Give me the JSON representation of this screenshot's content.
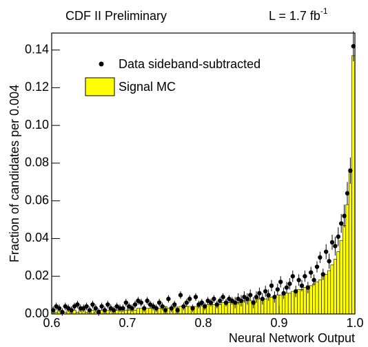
{
  "chart_data": {
    "type": "histogram",
    "header_left": "CDF II Preliminary",
    "header_right": "L = 1.7 fb",
    "header_right_exponent": "-1",
    "xlabel": "Neural Network Output",
    "ylabel": "Fraction of candidates per 0.004",
    "xlim": [
      0.6,
      1.0
    ],
    "ylim": [
      0,
      0.149
    ],
    "xticks": [
      0.6,
      0.7,
      0.8,
      0.9,
      {
        "value": 1,
        "label": "1.0"
      }
    ],
    "yticks": [
      {
        "value": 0,
        "label": "0.00"
      },
      0.02,
      0.04,
      0.06,
      0.08,
      {
        "value": 0.1,
        "label": "0.10"
      },
      0.12,
      0.14
    ],
    "bins": [
      0.6,
      0.604,
      0.608,
      0.612,
      0.616,
      0.62,
      0.624,
      0.628,
      0.632,
      0.636,
      0.64,
      0.644,
      0.648,
      0.652,
      0.656,
      0.66,
      0.664,
      0.668,
      0.672,
      0.676,
      0.68,
      0.684,
      0.688,
      0.692,
      0.696,
      0.7,
      0.704,
      0.708,
      0.712,
      0.716,
      0.72,
      0.724,
      0.728,
      0.732,
      0.736,
      0.74,
      0.744,
      0.748,
      0.752,
      0.756,
      0.76,
      0.764,
      0.768,
      0.772,
      0.776,
      0.78,
      0.784,
      0.788,
      0.792,
      0.796,
      0.8,
      0.804,
      0.808,
      0.812,
      0.816,
      0.82,
      0.824,
      0.828,
      0.832,
      0.836,
      0.84,
      0.844,
      0.848,
      0.852,
      0.856,
      0.86,
      0.864,
      0.868,
      0.872,
      0.876,
      0.88,
      0.884,
      0.888,
      0.892,
      0.896,
      0.9,
      0.904,
      0.908,
      0.912,
      0.916,
      0.92,
      0.924,
      0.928,
      0.932,
      0.936,
      0.94,
      0.944,
      0.948,
      0.952,
      0.956,
      0.96,
      0.964,
      0.968,
      0.972,
      0.976,
      0.98,
      0.984,
      0.988,
      0.992,
      0.996,
      1.0
    ],
    "series": [
      {
        "name": "Signal MC",
        "color": "#ffff00",
        "values": [
          0.001,
          0.001,
          0.002,
          0.001,
          0.001,
          0.002,
          0.001,
          0.002,
          0.001,
          0.002,
          0.002,
          0.001,
          0.002,
          0.002,
          0.001,
          0.002,
          0.002,
          0.002,
          0.002,
          0.002,
          0.002,
          0.002,
          0.002,
          0.003,
          0.002,
          0.002,
          0.003,
          0.002,
          0.003,
          0.003,
          0.003,
          0.003,
          0.003,
          0.003,
          0.003,
          0.003,
          0.003,
          0.004,
          0.003,
          0.003,
          0.004,
          0.003,
          0.004,
          0.004,
          0.004,
          0.004,
          0.004,
          0.004,
          0.004,
          0.005,
          0.004,
          0.005,
          0.005,
          0.005,
          0.005,
          0.005,
          0.006,
          0.005,
          0.006,
          0.006,
          0.006,
          0.006,
          0.006,
          0.007,
          0.007,
          0.007,
          0.007,
          0.008,
          0.008,
          0.008,
          0.008,
          0.009,
          0.009,
          0.009,
          0.01,
          0.01,
          0.01,
          0.011,
          0.011,
          0.012,
          0.012,
          0.013,
          0.013,
          0.014,
          0.015,
          0.015,
          0.016,
          0.017,
          0.018,
          0.02,
          0.021,
          0.023,
          0.026,
          0.029,
          0.033,
          0.039,
          0.047,
          0.058,
          0.077,
          0.137
        ]
      }
    ],
    "data": {
      "name": "Data sideband-subtracted",
      "color": "#000000",
      "x": [
        0.602,
        0.606,
        0.61,
        0.614,
        0.618,
        0.622,
        0.626,
        0.63,
        0.634,
        0.638,
        0.642,
        0.646,
        0.65,
        0.654,
        0.658,
        0.662,
        0.666,
        0.67,
        0.674,
        0.678,
        0.682,
        0.686,
        0.69,
        0.694,
        0.698,
        0.702,
        0.706,
        0.71,
        0.714,
        0.718,
        0.722,
        0.726,
        0.73,
        0.734,
        0.738,
        0.742,
        0.746,
        0.75,
        0.754,
        0.758,
        0.762,
        0.766,
        0.77,
        0.774,
        0.778,
        0.782,
        0.786,
        0.79,
        0.794,
        0.798,
        0.802,
        0.806,
        0.81,
        0.814,
        0.818,
        0.822,
        0.826,
        0.83,
        0.834,
        0.838,
        0.842,
        0.846,
        0.85,
        0.854,
        0.858,
        0.862,
        0.866,
        0.87,
        0.874,
        0.878,
        0.882,
        0.886,
        0.89,
        0.894,
        0.898,
        0.902,
        0.906,
        0.91,
        0.914,
        0.918,
        0.922,
        0.926,
        0.93,
        0.934,
        0.938,
        0.942,
        0.946,
        0.95,
        0.954,
        0.958,
        0.962,
        0.966,
        0.97,
        0.974,
        0.978,
        0.982,
        0.986,
        0.99,
        0.994,
        0.998
      ],
      "values": [
        0.002,
        0.004,
        0.003,
        0.001,
        0.004,
        0.003,
        0.002,
        0.004,
        0.005,
        0.003,
        0.003,
        0.004,
        0.002,
        0.005,
        0.003,
        0.001,
        0.004,
        0.002,
        0.005,
        0.003,
        0.002,
        0.004,
        0.003,
        0.003,
        0.006,
        0.004,
        0.003,
        0.005,
        0.007,
        0.006,
        0.003,
        0.007,
        0.005,
        0.004,
        0.003,
        0.006,
        0.004,
        0.002,
        0.008,
        0.003,
        0.005,
        0.002,
        0.01,
        0.004,
        0.006,
        0.008,
        0.003,
        0.009,
        0.005,
        0.006,
        0.004,
        0.007,
        0.006,
        0.008,
        0.005,
        0.007,
        0.009,
        0.006,
        0.008,
        0.007,
        0.006,
        0.008,
        0.007,
        0.009,
        0.008,
        0.01,
        0.006,
        0.009,
        0.011,
        0.008,
        0.012,
        0.01,
        0.015,
        0.009,
        0.013,
        0.017,
        0.011,
        0.014,
        0.016,
        0.02,
        0.012,
        0.018,
        0.015,
        0.02,
        0.014,
        0.022,
        0.018,
        0.025,
        0.03,
        0.021,
        0.033,
        0.028,
        0.038,
        0.036,
        0.041,
        0.048,
        0.052,
        0.064,
        0.076,
        0.142
      ],
      "errors": [
        0.002,
        0.002,
        0.002,
        0.002,
        0.002,
        0.002,
        0.002,
        0.002,
        0.002,
        0.002,
        0.002,
        0.002,
        0.002,
        0.002,
        0.002,
        0.002,
        0.002,
        0.002,
        0.002,
        0.002,
        0.002,
        0.002,
        0.002,
        0.002,
        0.002,
        0.002,
        0.002,
        0.002,
        0.002,
        0.002,
        0.002,
        0.002,
        0.002,
        0.002,
        0.002,
        0.002,
        0.002,
        0.002,
        0.002,
        0.002,
        0.002,
        0.002,
        0.002,
        0.002,
        0.002,
        0.002,
        0.002,
        0.002,
        0.002,
        0.002,
        0.002,
        0.002,
        0.002,
        0.002,
        0.002,
        0.002,
        0.002,
        0.002,
        0.002,
        0.002,
        0.003,
        0.003,
        0.003,
        0.003,
        0.003,
        0.003,
        0.003,
        0.003,
        0.003,
        0.003,
        0.003,
        0.003,
        0.003,
        0.003,
        0.003,
        0.003,
        0.003,
        0.003,
        0.003,
        0.003,
        0.003,
        0.003,
        0.003,
        0.003,
        0.003,
        0.003,
        0.003,
        0.003,
        0.003,
        0.003,
        0.004,
        0.004,
        0.004,
        0.005,
        0.005,
        0.005,
        0.006,
        0.006,
        0.007,
        0.008
      ]
    }
  }
}
